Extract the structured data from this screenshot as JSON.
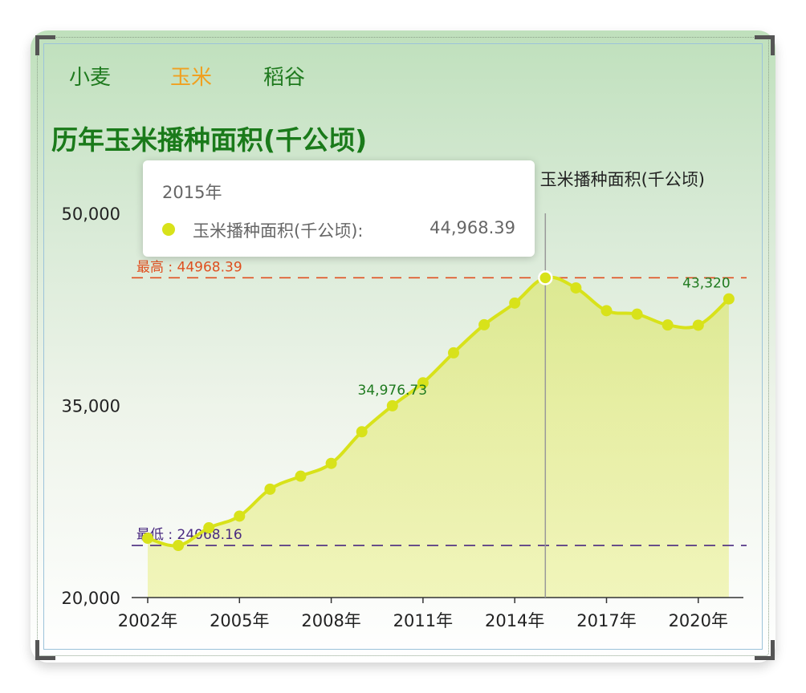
{
  "tabs": [
    {
      "label": "小麦"
    },
    {
      "label": "玉米"
    },
    {
      "label": "稻谷"
    }
  ],
  "colors": {
    "accent": "#d8e21a",
    "active_tab": "#f0a020",
    "tab": "#1f7a1f",
    "max_line": "#e05020",
    "min_line": "#4a2a80"
  },
  "chart_data": {
    "type": "area",
    "title": "历年玉米播种面积(千公顷)",
    "legend": {
      "label": "玉米播种面积(千公顷)",
      "position": "top-right"
    },
    "x": [
      "2002年",
      "2003年",
      "2004年",
      "2005年",
      "2006年",
      "2007年",
      "2008年",
      "2009年",
      "2010年",
      "2011年",
      "2012年",
      "2013年",
      "2014年",
      "2015年",
      "2016年",
      "2017年",
      "2018年",
      "2019年",
      "2020年",
      "2021年"
    ],
    "x_tick_labels": [
      "2002年",
      "2005年",
      "2008年",
      "2011年",
      "2014年",
      "2017年",
      "2020年"
    ],
    "series": [
      {
        "name": "玉米播种面积(千公顷)",
        "values": [
          24634,
          24068.16,
          25446,
          26358,
          28463,
          29478,
          30478,
          32948,
          34976.73,
          36767,
          39109,
          41299,
          42997,
          44968.39,
          44178,
          42399,
          42130,
          41284,
          41264,
          43320
        ]
      }
    ],
    "ylim": [
      20000,
      50000
    ],
    "y_ticks": [
      "20,000",
      "35,000",
      "50,000"
    ],
    "y_tick_values": [
      20000,
      35000,
      50000
    ],
    "data_labels": [
      {
        "index": 8,
        "text": "34,976.73"
      },
      {
        "index": 19,
        "text": "43,320"
      }
    ],
    "mark_lines": {
      "max": {
        "label": "最高 : 44968.39",
        "value": 44968.39
      },
      "min": {
        "label": "最低 : 24068.16",
        "value": 24068.16
      }
    },
    "tooltip": {
      "index": 13,
      "title": "2015年",
      "series_name": "玉米播种面积(千公顷):",
      "value": "44,968.39"
    },
    "grid": false
  }
}
